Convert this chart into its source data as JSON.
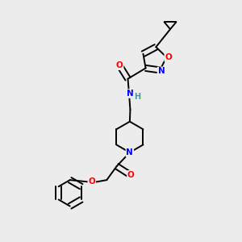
{
  "background_color": "#ececec",
  "bond_color": "#000000",
  "atom_colors": {
    "N": "#0000ff",
    "O": "#ff0000",
    "C": "#000000",
    "H": "#4a9a9a"
  },
  "figsize": [
    3.0,
    3.0
  ],
  "dpi": 100
}
